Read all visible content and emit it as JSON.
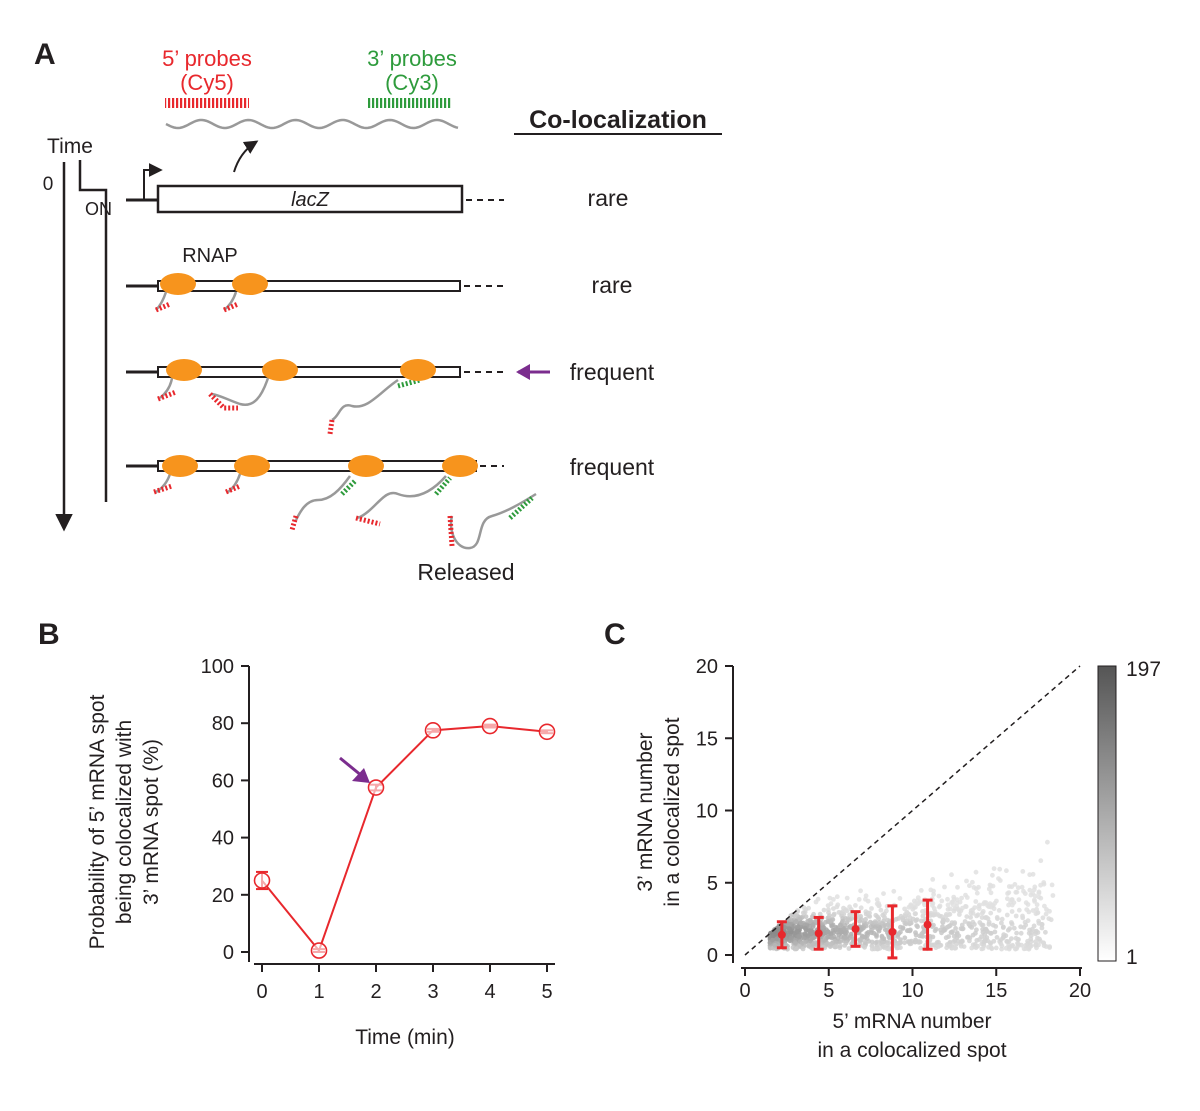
{
  "colors": {
    "red": "#e8282d",
    "green": "#2e9b3c",
    "orange": "#f7941d",
    "purple": "#7b2d8e",
    "gray_rna": "#999999",
    "black": "#231f20"
  },
  "panel_a": {
    "label": "A",
    "probe5_line1": "5’ probes",
    "probe5_line2": "(Cy5)",
    "probe3_line1": "3’ probes",
    "probe3_line2": "(Cy3)",
    "colocalization_title": "Co-localization",
    "time_label": "Time",
    "time_zero": "0",
    "on_label": "ON",
    "gene_label": "lacZ",
    "rnap_label": "RNAP",
    "released_label": "Released",
    "rows": [
      {
        "status": "rare"
      },
      {
        "status": "rare"
      },
      {
        "status": "frequent"
      },
      {
        "status": "frequent"
      }
    ]
  },
  "panel_b": {
    "label": "B",
    "ylabel_line1": "Probability of 5’ mRNA spot",
    "ylabel_line2": "being colocalized with",
    "ylabel_line3": "3’ mRNA spot (%)",
    "xlabel": "Time (min)"
  },
  "panel_c": {
    "label": "C",
    "xlabel_line1": "5’ mRNA number",
    "xlabel_line2": "in a colocalized spot",
    "ylabel_line1": "3’ mRNA number",
    "ylabel_line2": "in a colocalized spot",
    "colorbar_max": "197",
    "colorbar_min": "1"
  },
  "chart_data": [
    {
      "type": "line",
      "panel": "B",
      "x": [
        0,
        1,
        2,
        3,
        4,
        5
      ],
      "series": [
        {
          "name": "colocalization probability",
          "values": [
            25,
            0.5,
            57.5,
            77.5,
            79,
            77
          ],
          "errors": [
            3,
            0.5,
            1,
            0.5,
            0.5,
            0.5
          ]
        }
      ],
      "xticks": [
        "0",
        "1",
        "2",
        "3",
        "4",
        "5"
      ],
      "yticks": [
        "0",
        "20",
        "40",
        "60",
        "80",
        "100"
      ],
      "xlim": [
        0,
        5
      ],
      "ylim": [
        0,
        100
      ],
      "xlabel": "Time (min)",
      "ylabel": "Probability of 5’ mRNA spot being colocalized with 3’ mRNA spot (%)",
      "annotation": "arrow at 2 min"
    },
    {
      "type": "scatter",
      "panel": "C",
      "xticks": [
        "0",
        "5",
        "10",
        "15",
        "20"
      ],
      "yticks": [
        "0",
        "5",
        "10",
        "15",
        "20"
      ],
      "xlim": [
        0,
        20
      ],
      "ylim": [
        0,
        20
      ],
      "xlabel": "5’ mRNA number in a colocalized spot",
      "ylabel": "3’ mRNA number in a colocalized spot",
      "reference_line": "y = x (dashed)",
      "colorbar": {
        "min": 1,
        "max": 197
      },
      "binned_means": {
        "x": [
          2.2,
          4.4,
          6.6,
          8.8,
          10.9
        ],
        "y": [
          1.4,
          1.5,
          1.8,
          1.6,
          2.1
        ],
        "error": [
          0.9,
          1.1,
          1.2,
          1.8,
          1.7
        ]
      }
    }
  ]
}
